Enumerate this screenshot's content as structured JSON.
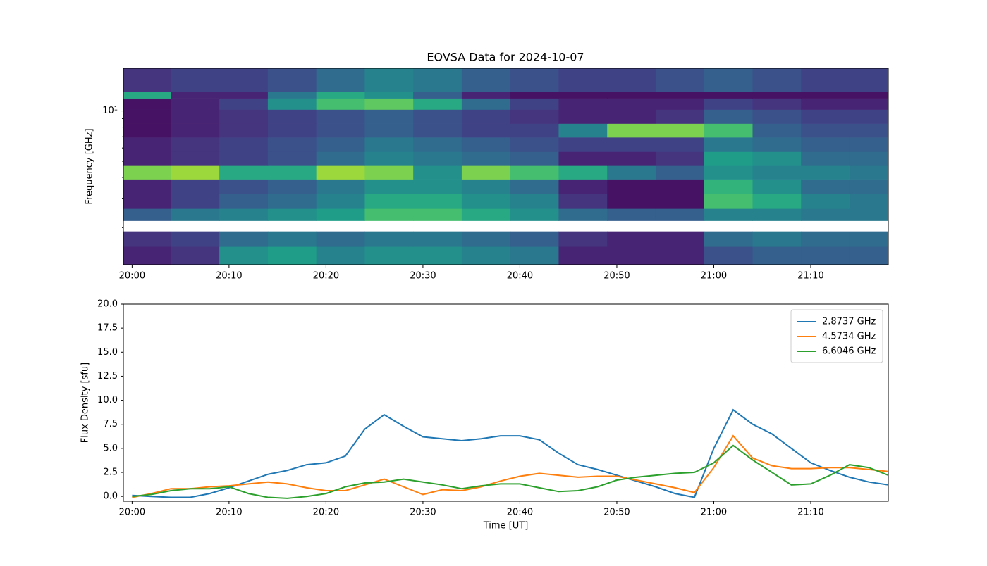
{
  "chart_data": [
    {
      "type": "heatmap",
      "title": "EOVSA Data for 2024-10-07",
      "ylabel": "Frequency [GHz]",
      "xlim": [
        -0.9,
        78.0
      ],
      "xticks": [
        {
          "value": 0,
          "label": "20:00"
        },
        {
          "value": 10,
          "label": "20:10"
        },
        {
          "value": 20,
          "label": "20:20"
        },
        {
          "value": 30,
          "label": "20:30"
        },
        {
          "value": 40,
          "label": "20:40"
        },
        {
          "value": 50,
          "label": "20:50"
        },
        {
          "value": 60,
          "label": "21:00"
        },
        {
          "value": 70,
          "label": "21:10"
        }
      ],
      "ylim": [
        1.2,
        18
      ],
      "ylog": true,
      "yticks": [
        {
          "value": 10,
          "label": "10¹"
        }
      ],
      "yminorticks": [
        2,
        3,
        4,
        5,
        6,
        7,
        8,
        9
      ],
      "xbins": [
        -0.9,
        4,
        9,
        14,
        19,
        24,
        29,
        34,
        39,
        44,
        49,
        54,
        59,
        64,
        69,
        74,
        78
      ],
      "ybins": [
        1.2,
        1.54,
        1.9,
        2.2,
        2.6,
        3.2,
        3.9,
        4.7,
        5.7,
        6.95,
        8.4,
        10.2,
        11.9,
        13.1,
        18
      ],
      "zlim": [
        0,
        1
      ],
      "colormap": "viridis",
      "z": [
        [
          0.1,
          0.15,
          0.5,
          0.55,
          0.45,
          0.5,
          0.5,
          0.45,
          0.4,
          0.1,
          0.1,
          0.1,
          0.25,
          0.3,
          0.3,
          0.3
        ],
        [
          0.15,
          0.2,
          0.35,
          0.4,
          0.35,
          0.4,
          0.4,
          0.35,
          0.3,
          0.15,
          0.1,
          0.1,
          0.35,
          0.4,
          0.35,
          0.35
        ],
        [
          null,
          null,
          null,
          null,
          null,
          null,
          null,
          null,
          null,
          null,
          null,
          null,
          null,
          null,
          null,
          null
        ],
        [
          0.3,
          0.4,
          0.45,
          0.5,
          0.55,
          0.7,
          0.7,
          0.6,
          0.5,
          0.35,
          0.3,
          0.3,
          0.45,
          0.45,
          0.4,
          0.4
        ],
        [
          0.1,
          0.2,
          0.3,
          0.35,
          0.45,
          0.6,
          0.6,
          0.5,
          0.45,
          0.15,
          0.05,
          0.05,
          0.7,
          0.6,
          0.45,
          0.4
        ],
        [
          0.1,
          0.2,
          0.25,
          0.3,
          0.4,
          0.5,
          0.5,
          0.45,
          0.35,
          0.1,
          0.05,
          0.05,
          0.65,
          0.5,
          0.35,
          0.35
        ],
        [
          0.8,
          0.85,
          0.6,
          0.6,
          0.85,
          0.8,
          0.5,
          0.8,
          0.7,
          0.6,
          0.4,
          0.3,
          0.5,
          0.45,
          0.45,
          0.4
        ],
        [
          0.1,
          0.15,
          0.2,
          0.25,
          0.35,
          0.45,
          0.4,
          0.35,
          0.3,
          0.1,
          0.1,
          0.15,
          0.55,
          0.5,
          0.35,
          0.35
        ],
        [
          0.1,
          0.15,
          0.2,
          0.25,
          0.3,
          0.4,
          0.35,
          0.3,
          0.25,
          0.2,
          0.2,
          0.2,
          0.4,
          0.35,
          0.3,
          0.3
        ],
        [
          0.05,
          0.1,
          0.15,
          0.2,
          0.25,
          0.3,
          0.25,
          0.2,
          0.2,
          0.45,
          0.8,
          0.8,
          0.7,
          0.3,
          0.25,
          0.25
        ],
        [
          0.05,
          0.1,
          0.15,
          0.2,
          0.25,
          0.3,
          0.25,
          0.2,
          0.15,
          0.1,
          0.1,
          0.15,
          0.3,
          0.25,
          0.2,
          0.2
        ],
        [
          0.05,
          0.1,
          0.2,
          0.5,
          0.7,
          0.75,
          0.6,
          0.35,
          0.2,
          0.1,
          0.1,
          0.1,
          0.2,
          0.15,
          0.1,
          0.1
        ],
        [
          0.6,
          0.1,
          0.1,
          0.4,
          0.6,
          0.5,
          0.3,
          0.1,
          0.05,
          0.05,
          0.05,
          0.05,
          0.05,
          0.05,
          0.05,
          0.05
        ],
        [
          0.15,
          0.2,
          0.2,
          0.25,
          0.35,
          0.45,
          0.4,
          0.3,
          0.25,
          0.2,
          0.2,
          0.25,
          0.3,
          0.25,
          0.2,
          0.2
        ]
      ]
    },
    {
      "type": "line",
      "xlabel": "Time [UT]",
      "ylabel": "Flux Density [sfu]",
      "xlim": [
        -0.9,
        78.0
      ],
      "xticks": [
        {
          "value": 0,
          "label": "20:00"
        },
        {
          "value": 10,
          "label": "20:10"
        },
        {
          "value": 20,
          "label": "20:20"
        },
        {
          "value": 30,
          "label": "20:30"
        },
        {
          "value": 40,
          "label": "20:40"
        },
        {
          "value": 50,
          "label": "20:50"
        },
        {
          "value": 60,
          "label": "21:00"
        },
        {
          "value": 70,
          "label": "21:10"
        }
      ],
      "ylim": [
        -0.5,
        20
      ],
      "yticks": [
        {
          "value": 0,
          "label": "0.0"
        },
        2.5,
        {
          "value": 5,
          "label": "5.0"
        },
        7.5,
        {
          "value": 10,
          "label": "10.0"
        },
        12.5,
        {
          "value": 15,
          "label": "15.0"
        },
        17.5,
        {
          "value": 20,
          "label": "20.0"
        }
      ],
      "legend": "upper right",
      "x": [
        0,
        2,
        4,
        6,
        8,
        10,
        12,
        14,
        16,
        18,
        20,
        22,
        24,
        26,
        28,
        30,
        32,
        34,
        36,
        38,
        40,
        42,
        44,
        46,
        48,
        50,
        52,
        54,
        56,
        58,
        60,
        62,
        64,
        66,
        68,
        70,
        72,
        74,
        76,
        78
      ],
      "series": [
        {
          "name": "2.8737 GHz",
          "color": "#1f77b4",
          "values": [
            0.1,
            0,
            -0.1,
            -0.1,
            0.3,
            0.9,
            1.6,
            2.3,
            2.7,
            3.3,
            3.5,
            4.2,
            7.0,
            8.5,
            7.3,
            6.2,
            6.0,
            5.8,
            6.0,
            6.3,
            6.3,
            5.9,
            4.5,
            3.3,
            2.8,
            2.2,
            1.6,
            1.0,
            0.3,
            -0.1,
            5.0,
            9.0,
            7.5,
            6.5,
            5.0,
            3.5,
            2.7,
            2.0,
            1.5,
            1.2
          ]
        },
        {
          "name": "4.5734 GHz",
          "color": "#ff7f0e",
          "values": [
            -0.1,
            0.3,
            0.8,
            0.8,
            1.0,
            1.1,
            1.3,
            1.5,
            1.3,
            0.9,
            0.6,
            0.6,
            1.2,
            1.8,
            1.0,
            0.2,
            0.7,
            0.6,
            1.0,
            1.6,
            2.1,
            2.4,
            2.2,
            2.0,
            2.1,
            2.1,
            1.7,
            1.3,
            0.9,
            0.4,
            3.0,
            6.3,
            4.0,
            3.2,
            2.9,
            2.9,
            3.0,
            3.0,
            2.8,
            2.6
          ]
        },
        {
          "name": "6.6046 GHz",
          "color": "#2ca02c",
          "values": [
            0,
            0.2,
            0.6,
            0.8,
            0.8,
            1.0,
            0.3,
            -0.1,
            -0.2,
            0.0,
            0.3,
            1.0,
            1.4,
            1.5,
            1.8,
            1.5,
            1.2,
            0.8,
            1.1,
            1.3,
            1.3,
            0.9,
            0.5,
            0.6,
            1.0,
            1.7,
            2.0,
            2.2,
            2.4,
            2.5,
            3.5,
            5.3,
            3.8,
            2.5,
            1.2,
            1.3,
            2.2,
            3.3,
            3.0,
            2.2
          ]
        }
      ]
    }
  ]
}
